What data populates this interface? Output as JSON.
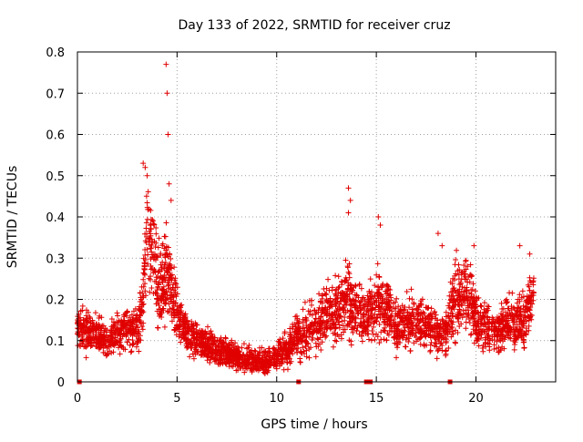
{
  "chart_data": {
    "type": "scatter",
    "title": "Day 133 of 2022, SRMTID for receiver cruz",
    "xlabel": "GPS time / hours",
    "ylabel": "SRMTID / TECUs",
    "xlim": [
      0,
      24
    ],
    "ylim": [
      0,
      0.8
    ],
    "xticks": [
      0,
      5,
      10,
      15,
      20
    ],
    "xtick_labels": [
      "0",
      "5",
      "10",
      "15",
      "20"
    ],
    "yticks": [
      0,
      0.1,
      0.2,
      0.3,
      0.4,
      0.5,
      0.6,
      0.7,
      0.8
    ],
    "ytick_labels": [
      "0",
      "0.1",
      "0.2",
      "0.3",
      "0.4",
      "0.5",
      "0.6",
      "0.7",
      "0.8"
    ],
    "grid": true,
    "marker": "+",
    "color": "#e00000",
    "series_envelope": {
      "x": [
        0.0,
        0.5,
        1.0,
        1.5,
        2.0,
        2.5,
        3.0,
        3.3,
        3.5,
        3.8,
        4.0,
        4.3,
        4.5,
        4.8,
        5.0,
        5.5,
        6.0,
        6.5,
        7.0,
        7.5,
        8.0,
        8.5,
        9.0,
        9.5,
        10.0,
        10.5,
        11.0,
        11.5,
        12.0,
        12.5,
        13.0,
        13.5,
        14.0,
        14.5,
        15.0,
        15.5,
        16.0,
        16.5,
        17.0,
        17.5,
        18.0,
        18.5,
        19.0,
        19.5,
        20.0,
        20.5,
        21.0,
        21.5,
        22.0,
        22.5,
        22.9
      ],
      "level": [
        0.13,
        0.12,
        0.11,
        0.1,
        0.12,
        0.13,
        0.12,
        0.2,
        0.38,
        0.3,
        0.22,
        0.24,
        0.28,
        0.2,
        0.17,
        0.12,
        0.1,
        0.09,
        0.08,
        0.07,
        0.06,
        0.055,
        0.05,
        0.05,
        0.06,
        0.08,
        0.11,
        0.12,
        0.14,
        0.17,
        0.16,
        0.2,
        0.17,
        0.15,
        0.2,
        0.18,
        0.14,
        0.14,
        0.15,
        0.14,
        0.12,
        0.12,
        0.2,
        0.22,
        0.16,
        0.13,
        0.11,
        0.15,
        0.14,
        0.16,
        0.22
      ],
      "spread": [
        0.04,
        0.05,
        0.04,
        0.04,
        0.05,
        0.05,
        0.05,
        0.08,
        0.12,
        0.1,
        0.1,
        0.1,
        0.12,
        0.08,
        0.06,
        0.05,
        0.04,
        0.04,
        0.04,
        0.03,
        0.03,
        0.03,
        0.03,
        0.03,
        0.03,
        0.04,
        0.05,
        0.06,
        0.06,
        0.07,
        0.07,
        0.08,
        0.07,
        0.06,
        0.08,
        0.07,
        0.06,
        0.06,
        0.06,
        0.05,
        0.05,
        0.05,
        0.09,
        0.08,
        0.07,
        0.06,
        0.05,
        0.06,
        0.06,
        0.07,
        0.06
      ],
      "points_per_hour": 150
    },
    "peaks": [
      {
        "x": 3.3,
        "y": 0.53
      },
      {
        "x": 3.4,
        "y": 0.52
      },
      {
        "x": 3.5,
        "y": 0.5
      },
      {
        "x": 4.45,
        "y": 0.77
      },
      {
        "x": 4.5,
        "y": 0.7
      },
      {
        "x": 4.55,
        "y": 0.6
      },
      {
        "x": 4.6,
        "y": 0.48
      },
      {
        "x": 4.7,
        "y": 0.44
      },
      {
        "x": 13.6,
        "y": 0.47
      },
      {
        "x": 13.7,
        "y": 0.44
      },
      {
        "x": 13.6,
        "y": 0.41
      },
      {
        "x": 15.1,
        "y": 0.4
      },
      {
        "x": 15.2,
        "y": 0.38
      },
      {
        "x": 18.1,
        "y": 0.36
      },
      {
        "x": 18.3,
        "y": 0.33
      },
      {
        "x": 19.9,
        "y": 0.33
      },
      {
        "x": 22.2,
        "y": 0.33
      },
      {
        "x": 22.7,
        "y": 0.31
      }
    ],
    "data_gap_markers_x": [
      0.1,
      11.1,
      14.5,
      14.6,
      14.7,
      18.7
    ]
  }
}
